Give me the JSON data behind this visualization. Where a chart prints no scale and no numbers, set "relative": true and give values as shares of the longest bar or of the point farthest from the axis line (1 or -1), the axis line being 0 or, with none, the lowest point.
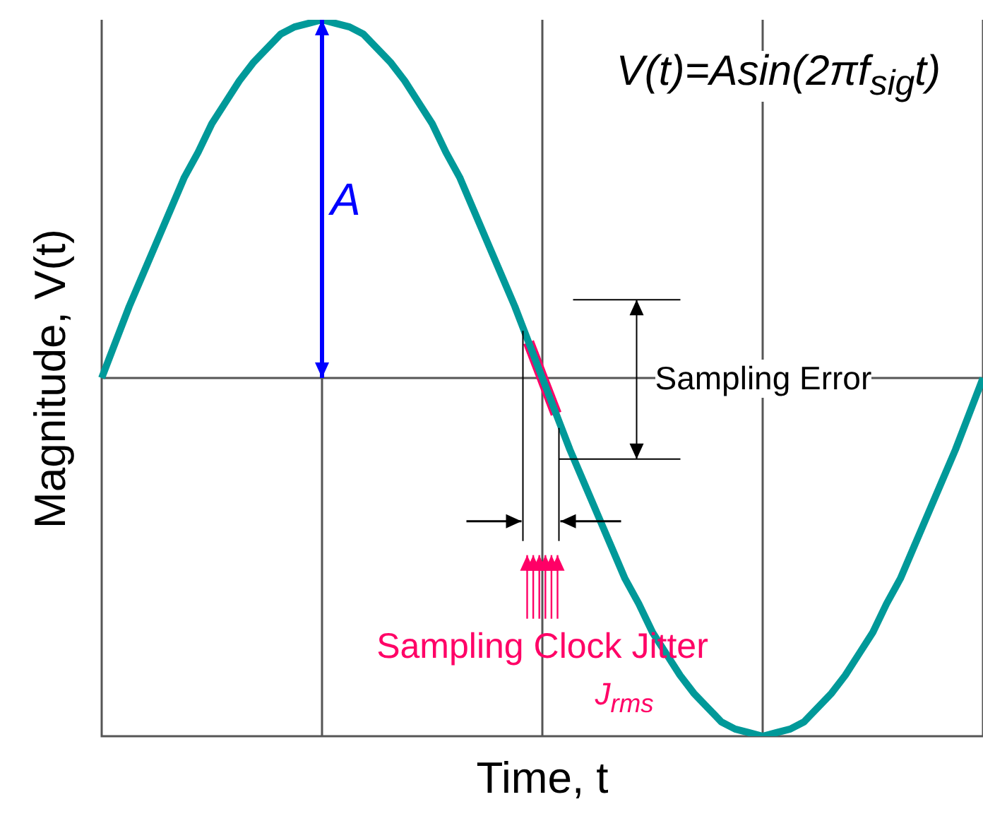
{
  "chart_data": {
    "type": "line",
    "relative": true,
    "xlabel": "Time,  t",
    "ylabel": "Magnitude,  V(t)",
    "categories": [
      null,
      null,
      null,
      null,
      null,
      null,
      null,
      null,
      null,
      null,
      null,
      null,
      null,
      null,
      null,
      null,
      null,
      null,
      null,
      null,
      null,
      null,
      null,
      null,
      null,
      null,
      null,
      null,
      null,
      null,
      null,
      null,
      null,
      null,
      null,
      null,
      null,
      null,
      null,
      null,
      null,
      null,
      null,
      null,
      null,
      null,
      null,
      null,
      null,
      null,
      null,
      null,
      null,
      null,
      null,
      null,
      null,
      null,
      null,
      null,
      null,
      null,
      null,
      null,
      null
    ],
    "series": [
      {
        "color": "#009999",
        "values": [
          0,
          0.1,
          0.2,
          0.29,
          0.38,
          0.47,
          0.56,
          0.63,
          0.71,
          0.77,
          0.83,
          0.88,
          0.92,
          0.96,
          0.98,
          0.99,
          1,
          0.99,
          0.98,
          0.96,
          0.92,
          0.88,
          0.83,
          0.77,
          0.71,
          0.63,
          0.56,
          0.47,
          0.38,
          0.29,
          0.2,
          0.1,
          0,
          -0.1,
          -0.2,
          -0.29,
          -0.38,
          -0.47,
          -0.56,
          -0.63,
          -0.71,
          -0.77,
          -0.83,
          -0.88,
          -0.92,
          -0.96,
          -0.98,
          -0.99,
          -1,
          -0.99,
          -0.98,
          -0.96,
          -0.92,
          -0.88,
          -0.83,
          -0.77,
          -0.71,
          -0.63,
          -0.56,
          -0.47,
          -0.38,
          -0.29,
          -0.2,
          -0.1,
          0
        ]
      },
      {
        "color": "#ff0066",
        "values": [
          null,
          null,
          null,
          null,
          null,
          null,
          null,
          null,
          null,
          null,
          null,
          null,
          null,
          null,
          null,
          null,
          null,
          null,
          null,
          null,
          null,
          null,
          null,
          null,
          null,
          null,
          null,
          null,
          null,
          null,
          null,
          0.1,
          0,
          -0.1,
          null,
          null,
          null,
          null,
          null,
          null,
          null,
          null,
          null,
          null,
          null,
          null,
          null,
          null,
          null,
          null,
          null,
          null,
          null,
          null,
          null,
          null,
          null,
          null,
          null,
          null,
          null,
          null,
          null,
          null,
          null
        ]
      }
    ],
    "annotations": [
      "V(t)=Asin(2πf$_{sig}$t)",
      "A",
      "Sampling Error",
      "Sampling Clock Jitter",
      "J$_{rms}$"
    ],
    "grid": "x",
    "legend": false,
    "marker": "none",
    "line_style": "solid"
  }
}
